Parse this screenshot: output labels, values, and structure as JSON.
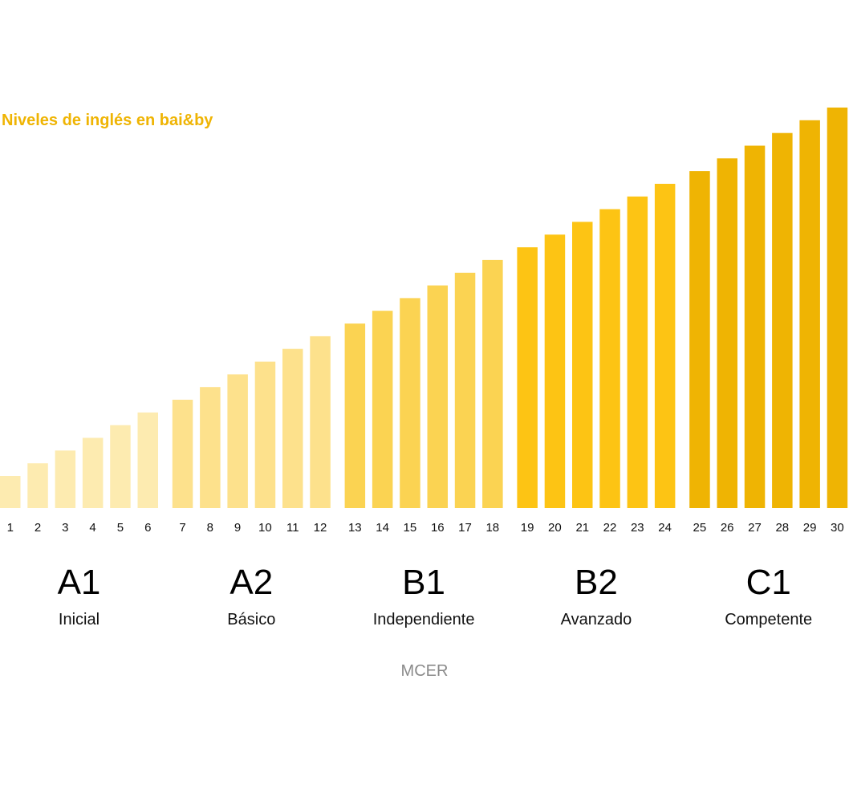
{
  "chart_data": {
    "type": "bar",
    "title": "Niveles de inglés en bai&by",
    "xlabel": "MCER",
    "ylabel": "",
    "grid": false,
    "categories": [
      "1",
      "2",
      "3",
      "4",
      "5",
      "6",
      "7",
      "8",
      "9",
      "10",
      "11",
      "12",
      "13",
      "14",
      "15",
      "16",
      "17",
      "18",
      "19",
      "20",
      "21",
      "22",
      "23",
      "24",
      "25",
      "26",
      "27",
      "28",
      "29",
      "30"
    ],
    "values": [
      1,
      2,
      3,
      4,
      5,
      6,
      7,
      8,
      9,
      10,
      11,
      12,
      13,
      14,
      15,
      16,
      17,
      18,
      19,
      20,
      21,
      22,
      23,
      24,
      25,
      26,
      27,
      28,
      29,
      30
    ],
    "ylim": [
      0,
      30
    ],
    "groups": [
      {
        "code": "A1",
        "name": "Inicial",
        "range": [
          1,
          6
        ],
        "color": "#FDEBB0"
      },
      {
        "code": "A2",
        "name": "Básico",
        "range": [
          7,
          12
        ],
        "color": "#FDE18C"
      },
      {
        "code": "B1",
        "name": "Independiente",
        "range": [
          13,
          18
        ],
        "color": "#FBD352"
      },
      {
        "code": "B2",
        "name": "Avanzado",
        "range": [
          19,
          24
        ],
        "color": "#FDC414"
      },
      {
        "code": "C1",
        "name": "Competente",
        "range": [
          25,
          30
        ],
        "color": "#EFB403"
      }
    ],
    "title_color": "#EFB403",
    "footer_color": "#8a8a8a"
  }
}
